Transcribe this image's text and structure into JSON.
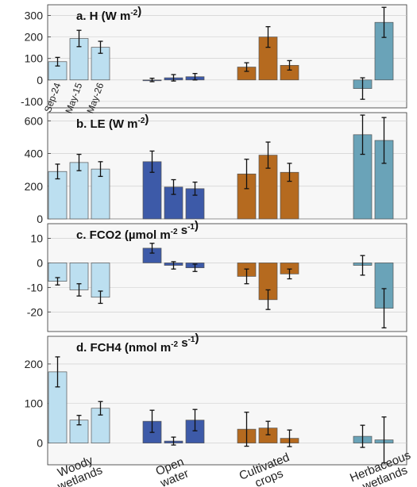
{
  "colors": {
    "woody": "#bcdff0",
    "water": "#3d5aa8",
    "crops": "#b56a1f",
    "herb": "#6aa3b8"
  },
  "categories": [
    "Woody\nwetlands",
    "Open\nwater",
    "Cultivated\ncrops",
    "Herbaceous\nwetlands"
  ],
  "date_labels": [
    "Sep-24",
    "May-15",
    "May-26"
  ],
  "chart_data": [
    {
      "type": "bar",
      "title": "a. H (W m-2)",
      "title_main": "a. H (W m",
      "title_sup": "-2",
      "title_end": ")",
      "ylim": [
        -130,
        350
      ],
      "yticks": [
        -100,
        0,
        100,
        200,
        300
      ],
      "values": [
        [
          85,
          193,
          152
        ],
        [
          0,
          10,
          15
        ],
        [
          60,
          200,
          68
        ],
        [
          -40,
          268,
          null
        ]
      ],
      "errors": [
        [
          20,
          38,
          28
        ],
        [
          8,
          15,
          15
        ],
        [
          20,
          48,
          22
        ],
        [
          50,
          70,
          null
        ]
      ]
    },
    {
      "type": "bar",
      "title": "b. LE (W m-2)",
      "title_main": "b. LE (W m",
      "title_sup": "-2",
      "title_end": ")",
      "ylim": [
        0,
        650
      ],
      "yticks": [
        0,
        200,
        400,
        600
      ],
      "values": [
        [
          290,
          345,
          305
        ],
        [
          350,
          195,
          185
        ],
        [
          275,
          390,
          285
        ],
        [
          515,
          480,
          null
        ]
      ],
      "errors": [
        [
          45,
          50,
          45
        ],
        [
          65,
          45,
          40
        ],
        [
          90,
          80,
          55
        ],
        [
          120,
          140,
          null
        ]
      ]
    },
    {
      "type": "bar",
      "title": "c. FCO2 (µmol m-2 s-1)",
      "title_main": "c. FCO2 (µmol m",
      "title_sup": "-2",
      "title_mid": " s",
      "title_sup2": "-1",
      "title_end": ")",
      "ylim": [
        -28,
        16
      ],
      "yticks": [
        -20,
        -10,
        0,
        10
      ],
      "values": [
        [
          -7.5,
          -11,
          -14
        ],
        [
          6,
          -1,
          -2
        ],
        [
          -5.5,
          -15,
          -4.5
        ],
        [
          -1,
          -18.5,
          null
        ]
      ],
      "errors": [
        [
          1.5,
          2.5,
          2.5
        ],
        [
          2,
          1.5,
          1.5
        ],
        [
          3,
          4,
          2
        ],
        [
          4,
          8,
          null
        ]
      ]
    },
    {
      "type": "bar",
      "title": "d. FCH4 (nmol m-2 s-1)",
      "title_main": "d. FCH4 (nmol m",
      "title_sup": "-2",
      "title_mid": " s",
      "title_sup2": "-1",
      "title_end": ")",
      "ylim": [
        -55,
        270
      ],
      "yticks": [
        0,
        100,
        200
      ],
      "values": [
        [
          180,
          58,
          88
        ],
        [
          55,
          5,
          58
        ],
        [
          35,
          38,
          12
        ],
        [
          17,
          8,
          null
        ]
      ],
      "errors": [
        [
          38,
          12,
          17
        ],
        [
          28,
          10,
          27
        ],
        [
          43,
          17,
          21
        ],
        [
          28,
          58,
          null
        ]
      ]
    }
  ]
}
